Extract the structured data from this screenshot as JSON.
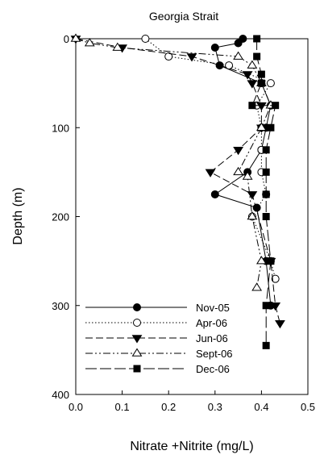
{
  "chart_data": {
    "type": "line",
    "title": "Georgia Strait",
    "xlabel": "Nitrate +Nitrite (mg/L)",
    "ylabel": "Depth (m)",
    "xlim": [
      0.0,
      0.5
    ],
    "ylim": [
      400,
      0
    ],
    "y_inverted": true,
    "x_ticks": [
      "0.0",
      "0.1",
      "0.2",
      "0.3",
      "0.4",
      "0.5"
    ],
    "y_ticks": [
      "0",
      "100",
      "200",
      "300",
      "400"
    ],
    "grid": false,
    "legend_position": "lower-left",
    "series": [
      {
        "name": "Nov-05",
        "marker": "filled-circle",
        "line": "solid",
        "points": [
          [
            0.36,
            0
          ],
          [
            0.35,
            5
          ],
          [
            0.3,
            10
          ],
          [
            0.31,
            30
          ],
          [
            0.4,
            50
          ],
          [
            0.42,
            75
          ],
          [
            0.41,
            100
          ],
          [
            0.4,
            125
          ],
          [
            0.37,
            150
          ],
          [
            0.3,
            175
          ],
          [
            0.39,
            190
          ],
          [
            0.41,
            250
          ],
          [
            0.42,
            300
          ]
        ]
      },
      {
        "name": "Apr-06",
        "marker": "open-circle",
        "line": "dotted",
        "points": [
          [
            0.15,
            0
          ],
          [
            0.2,
            20
          ],
          [
            0.33,
            30
          ],
          [
            0.42,
            50
          ],
          [
            0.39,
            75
          ],
          [
            0.4,
            100
          ],
          [
            0.4,
            125
          ],
          [
            0.4,
            150
          ],
          [
            0.41,
            175
          ],
          [
            0.38,
            200
          ],
          [
            0.42,
            250
          ],
          [
            0.43,
            270
          ]
        ]
      },
      {
        "name": "Jun-06",
        "marker": "filled-triangle-down",
        "line": "dashed",
        "points": [
          [
            0.0,
            0
          ],
          [
            0.1,
            10
          ],
          [
            0.25,
            20
          ],
          [
            0.37,
            40
          ],
          [
            0.38,
            50
          ],
          [
            0.4,
            75
          ],
          [
            0.4,
            100
          ],
          [
            0.35,
            125
          ],
          [
            0.29,
            150
          ],
          [
            0.38,
            175
          ],
          [
            0.42,
            250
          ],
          [
            0.43,
            300
          ],
          [
            0.44,
            320
          ]
        ]
      },
      {
        "name": "Sept-06",
        "marker": "open-triangle-up",
        "line": "dash-dot-dot",
        "points": [
          [
            0.0,
            0
          ],
          [
            0.03,
            5
          ],
          [
            0.09,
            10
          ],
          [
            0.35,
            20
          ],
          [
            0.38,
            30
          ],
          [
            0.4,
            50
          ],
          [
            0.42,
            75
          ],
          [
            0.4,
            100
          ],
          [
            0.35,
            150
          ],
          [
            0.37,
            155
          ],
          [
            0.38,
            200
          ],
          [
            0.4,
            250
          ],
          [
            0.39,
            280
          ]
        ]
      },
      {
        "name": "Dec-06",
        "marker": "filled-square",
        "line": "long-dash",
        "points": [
          [
            0.39,
            0
          ],
          [
            0.39,
            20
          ],
          [
            0.4,
            40
          ],
          [
            0.4,
            50
          ],
          [
            0.38,
            75
          ],
          [
            0.43,
            75
          ],
          [
            0.42,
            100
          ],
          [
            0.41,
            125
          ],
          [
            0.41,
            150
          ],
          [
            0.41,
            175
          ],
          [
            0.41,
            200
          ],
          [
            0.42,
            250
          ],
          [
            0.41,
            300
          ],
          [
            0.41,
            345
          ]
        ]
      }
    ]
  }
}
